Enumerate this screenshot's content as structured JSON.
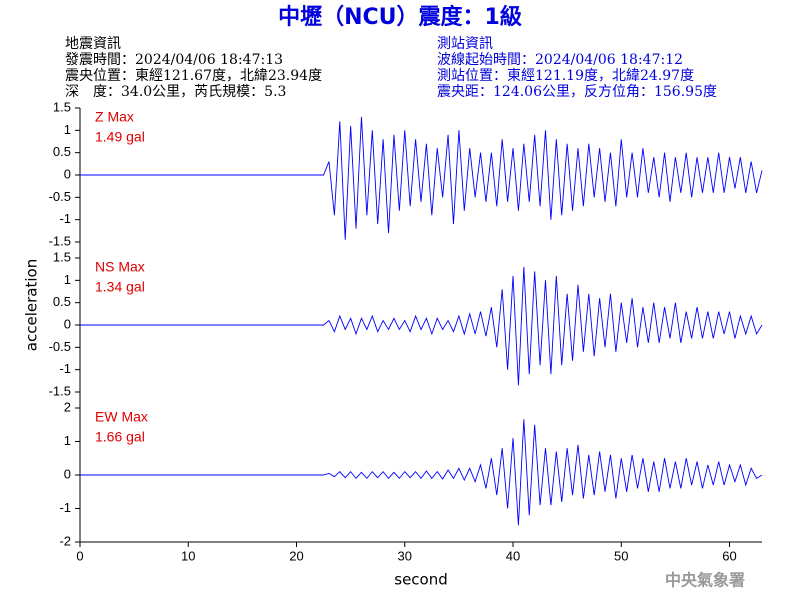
{
  "title": "中壢（NCU）震度：1級",
  "left_info": [
    "地震資訊",
    "發震時間：2024/04/06 18:47:13",
    "震央位置：東經121.67度，北緯23.94度",
    "深　度：34.0公里，芮氏規模：5.3"
  ],
  "right_info": [
    "測站資訊",
    "波線起始時間：2024/04/06 18:47:12",
    "測站位置：東經121.19度，北緯24.97度",
    "震央距：124.06公里，反方位角：156.95度"
  ],
  "footer": "中央氣象署",
  "chart_data": [
    {
      "type": "line",
      "label": "Z Max",
      "max": "1.49 gal",
      "color": "#0000ff",
      "xlim": [
        0,
        63
      ],
      "ylim": [
        -1.5,
        1.5
      ],
      "yticks": [
        1.5,
        1,
        0.5,
        0,
        -0.5,
        -1,
        -1.5
      ],
      "x": [
        0,
        22.5,
        23,
        23.5,
        24,
        24.5,
        25,
        25.5,
        26,
        26.5,
        27,
        27.5,
        28,
        28.5,
        29,
        29.5,
        30,
        30.5,
        31,
        31.5,
        32,
        32.5,
        33,
        33.5,
        34,
        34.5,
        35,
        35.5,
        36,
        36.5,
        37,
        37.5,
        38,
        38.5,
        39,
        39.5,
        40,
        40.5,
        41,
        41.5,
        42,
        42.5,
        43,
        43.5,
        44,
        44.5,
        45,
        45.5,
        46,
        46.5,
        47,
        47.5,
        48,
        48.5,
        49,
        49.5,
        50,
        50.5,
        51,
        51.5,
        52,
        52.5,
        53,
        53.5,
        54,
        54.5,
        55,
        55.5,
        56,
        56.5,
        57,
        57.5,
        58,
        58.5,
        59,
        59.5,
        60,
        60.5,
        61,
        61.5,
        62,
        62.5,
        63
      ],
      "values": [
        0,
        0,
        0.3,
        -0.9,
        1.2,
        -1.45,
        1.1,
        -1.2,
        1.3,
        -0.9,
        1.0,
        -1.1,
        0.8,
        -1.3,
        0.9,
        -0.8,
        1.0,
        -0.7,
        0.8,
        -0.6,
        0.7,
        -0.9,
        0.6,
        -0.5,
        0.9,
        -1.1,
        1.0,
        -0.8,
        0.6,
        -0.5,
        0.5,
        -0.6,
        0.5,
        -0.7,
        0.8,
        -0.6,
        0.6,
        -0.8,
        0.7,
        -0.6,
        0.9,
        -0.7,
        1.0,
        -1.0,
        0.8,
        -0.9,
        0.7,
        -0.8,
        0.6,
        -0.7,
        0.7,
        -0.5,
        0.6,
        -0.6,
        0.5,
        -0.7,
        0.8,
        -0.5,
        0.5,
        -0.5,
        0.6,
        -0.4,
        0.4,
        -0.5,
        0.5,
        -0.6,
        0.4,
        -0.4,
        0.5,
        -0.5,
        0.4,
        -0.4,
        0.4,
        -0.4,
        0.5,
        -0.4,
        0.4,
        -0.3,
        0.4,
        -0.4,
        0.3,
        -0.4,
        0.1
      ]
    },
    {
      "type": "line",
      "label": "NS Max",
      "max": "1.34 gal",
      "color": "#0000ff",
      "y_label": "acceleration",
      "xlim": [
        0,
        63
      ],
      "ylim": [
        -1.5,
        1.5
      ],
      "yticks": [
        1.5,
        1,
        0.5,
        0,
        -0.5,
        -1,
        -1.5
      ],
      "x": [
        0,
        22.5,
        23,
        23.5,
        24,
        24.5,
        25,
        25.5,
        26,
        26.5,
        27,
        27.5,
        28,
        28.5,
        29,
        29.5,
        30,
        30.5,
        31,
        31.5,
        32,
        32.5,
        33,
        33.5,
        34,
        34.5,
        35,
        35.5,
        36,
        36.5,
        37,
        37.5,
        38,
        38.5,
        39,
        39.5,
        40,
        40.5,
        41,
        41.5,
        42,
        42.5,
        43,
        43.5,
        44,
        44.5,
        45,
        45.5,
        46,
        46.5,
        47,
        47.5,
        48,
        48.5,
        49,
        49.5,
        50,
        50.5,
        51,
        51.5,
        52,
        52.5,
        53,
        53.5,
        54,
        54.5,
        55,
        55.5,
        56,
        56.5,
        57,
        57.5,
        58,
        58.5,
        59,
        59.5,
        60,
        60.5,
        61,
        61.5,
        62,
        62.5,
        63
      ],
      "values": [
        0,
        0,
        0.1,
        -0.15,
        0.2,
        -0.1,
        0.15,
        -0.2,
        0.15,
        -0.1,
        0.2,
        -0.15,
        0.1,
        -0.1,
        0.15,
        -0.1,
        0.1,
        -0.15,
        0.2,
        -0.1,
        0.15,
        -0.2,
        0.15,
        -0.1,
        0.1,
        -0.15,
        0.2,
        -0.2,
        0.25,
        -0.2,
        0.3,
        -0.25,
        0.4,
        -0.5,
        0.8,
        -1.0,
        1.1,
        -1.35,
        1.3,
        -1.1,
        1.2,
        -0.9,
        1.0,
        -1.1,
        1.1,
        -0.9,
        0.7,
        -0.8,
        0.9,
        -0.6,
        0.7,
        -0.7,
        0.6,
        -0.5,
        0.7,
        -0.6,
        0.5,
        -0.4,
        0.6,
        -0.5,
        0.4,
        -0.4,
        0.5,
        -0.4,
        0.4,
        -0.3,
        0.5,
        -0.4,
        0.3,
        -0.3,
        0.4,
        -0.3,
        0.3,
        -0.3,
        0.3,
        -0.2,
        0.3,
        -0.3,
        0.2,
        -0.2,
        0.2,
        -0.2,
        0
      ]
    },
    {
      "type": "line",
      "label": "EW Max",
      "max": "1.66 gal",
      "color": "#0000ff",
      "x_label": "second",
      "xlim": [
        0,
        63
      ],
      "xticks": [
        0,
        10,
        20,
        30,
        40,
        50,
        60
      ],
      "ylim": [
        -2,
        2
      ],
      "yticks": [
        2,
        1,
        0,
        -1,
        -2
      ],
      "x": [
        0,
        22.5,
        23,
        23.5,
        24,
        24.5,
        25,
        25.5,
        26,
        26.5,
        27,
        27.5,
        28,
        28.5,
        29,
        29.5,
        30,
        30.5,
        31,
        31.5,
        32,
        32.5,
        33,
        33.5,
        34,
        34.5,
        35,
        35.5,
        36,
        36.5,
        37,
        37.5,
        38,
        38.5,
        39,
        39.5,
        40,
        40.5,
        41,
        41.5,
        42,
        42.5,
        43,
        43.5,
        44,
        44.5,
        45,
        45.5,
        46,
        46.5,
        47,
        47.5,
        48,
        48.5,
        49,
        49.5,
        50,
        50.5,
        51,
        51.5,
        52,
        52.5,
        53,
        53.5,
        54,
        54.5,
        55,
        55.5,
        56,
        56.5,
        57,
        57.5,
        58,
        58.5,
        59,
        59.5,
        60,
        60.5,
        61,
        61.5,
        62,
        62.5,
        63
      ],
      "values": [
        0,
        0,
        0.05,
        -0.05,
        0.1,
        -0.08,
        0.1,
        -0.1,
        0.08,
        -0.1,
        0.1,
        -0.08,
        0.1,
        -0.1,
        0.08,
        -0.1,
        0.1,
        -0.08,
        0.1,
        -0.1,
        0.12,
        -0.1,
        0.1,
        -0.12,
        0.15,
        -0.1,
        0.2,
        -0.15,
        0.2,
        -0.2,
        0.3,
        -0.4,
        0.5,
        -0.6,
        0.8,
        -1.0,
        1.1,
        -1.5,
        1.66,
        -1.2,
        1.5,
        -0.9,
        0.8,
        -0.9,
        0.7,
        -0.8,
        0.8,
        -0.6,
        0.9,
        -0.7,
        0.6,
        -0.6,
        0.7,
        -0.5,
        0.6,
        -0.7,
        0.5,
        -0.5,
        0.6,
        -0.4,
        0.5,
        -0.5,
        0.4,
        -0.5,
        0.5,
        -0.4,
        0.4,
        -0.4,
        0.5,
        -0.3,
        0.4,
        -0.4,
        0.3,
        -0.3,
        0.4,
        -0.3,
        0.3,
        -0.2,
        0.3,
        -0.3,
        0.2,
        -0.1,
        0
      ]
    }
  ]
}
